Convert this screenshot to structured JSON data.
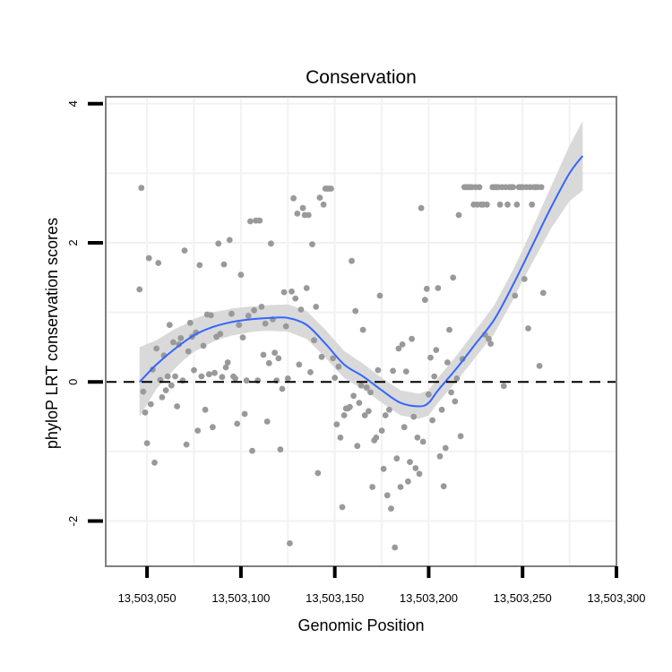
{
  "chart_data": {
    "type": "scatter",
    "title": "Conservation",
    "xlabel": "Genomic Position",
    "ylabel": "phyloP LRT conservation scores",
    "xlim": [
      13503028,
      13503300
    ],
    "ylim": [
      -2.65,
      4.1
    ],
    "x_ticks": [
      13503050,
      13503100,
      13503150,
      13503200,
      13503250,
      13503300
    ],
    "x_tick_labels": [
      "13,503,050",
      "13,503,100",
      "13,503,150",
      "13,503,200",
      "13,503,250",
      "13,503,300"
    ],
    "y_ticks": [
      -2,
      0,
      2,
      4
    ],
    "y_tick_labels": [
      "-2",
      "0",
      "2",
      "4"
    ],
    "reference_line": {
      "y": 0,
      "style": "dashed"
    },
    "grid": true,
    "colors": {
      "points": "#999999",
      "smooth": "#3366ff",
      "ribbon": "#d9d9d9",
      "grid": "#f2f2f2",
      "border": "#7f7f7f"
    },
    "points": [
      [
        13503046,
        1.33
      ],
      [
        13503047,
        2.79
      ],
      [
        13503048,
        -0.14
      ],
      [
        13503049,
        -0.44
      ],
      [
        13503050,
        -0.88
      ],
      [
        13503051,
        1.78
      ],
      [
        13503052,
        -0.32
      ],
      [
        13503053,
        0.18
      ],
      [
        13503054,
        -1.16
      ],
      [
        13503055,
        0.48
      ],
      [
        13503056,
        1.71
      ],
      [
        13503057,
        0.03
      ],
      [
        13503058,
        -0.22
      ],
      [
        13503059,
        0.38
      ],
      [
        13503060,
        -0.12
      ],
      [
        13503061,
        0.08
      ],
      [
        13503062,
        0.82
      ],
      [
        13503063,
        -0.05
      ],
      [
        13503064,
        0.57
      ],
      [
        13503065,
        0.08
      ],
      [
        13503066,
        -0.35
      ],
      [
        13503067,
        0.54
      ],
      [
        13503068,
        0.63
      ],
      [
        13503069,
        0.02
      ],
      [
        13503070,
        1.89
      ],
      [
        13503071,
        -0.9
      ],
      [
        13503072,
        0.44
      ],
      [
        13503073,
        0.85
      ],
      [
        13503074,
        0.65
      ],
      [
        13503075,
        0.17
      ],
      [
        13503076,
        0.71
      ],
      [
        13503077,
        -0.7
      ],
      [
        13503078,
        1.68
      ],
      [
        13503079,
        0.08
      ],
      [
        13503080,
        0.52
      ],
      [
        13503081,
        -0.4
      ],
      [
        13503082,
        0.97
      ],
      [
        13503083,
        0.11
      ],
      [
        13503084,
        0.96
      ],
      [
        13503085,
        -0.65
      ],
      [
        13503086,
        0.13
      ],
      [
        13503087,
        0.65
      ],
      [
        13503088,
        1.99
      ],
      [
        13503089,
        0.69
      ],
      [
        13503090,
        0.07
      ],
      [
        13503091,
        1.69
      ],
      [
        13503092,
        0.21
      ],
      [
        13503093,
        0.28
      ],
      [
        13503094,
        2.04
      ],
      [
        13503095,
        0.98
      ],
      [
        13503096,
        0.08
      ],
      [
        13503097,
        0.05
      ],
      [
        13503098,
        -0.6
      ],
      [
        13503099,
        0.82
      ],
      [
        13503100,
        1.54
      ],
      [
        13503101,
        0.64
      ],
      [
        13503102,
        -0.46
      ],
      [
        13503103,
        0.02
      ],
      [
        13503104,
        0.95
      ],
      [
        13503105,
        2.31
      ],
      [
        13503106,
        -0.99
      ],
      [
        13503107,
        1.03
      ],
      [
        13503108,
        2.32
      ],
      [
        13503109,
        0.02
      ],
      [
        13503110,
        2.32
      ],
      [
        13503111,
        1.08
      ],
      [
        13503112,
        0.39
      ],
      [
        13503113,
        0.84
      ],
      [
        13503114,
        -0.57
      ],
      [
        13503115,
        0.27
      ],
      [
        13503116,
        1.99
      ],
      [
        13503117,
        0.9
      ],
      [
        13503118,
        0.42
      ],
      [
        13503119,
        0.02
      ],
      [
        13503120,
        0.34
      ],
      [
        13503121,
        -0.97
      ],
      [
        13503122,
        -0.1
      ],
      [
        13503123,
        1.29
      ],
      [
        13503124,
        0.8
      ],
      [
        13503125,
        0.05
      ],
      [
        13503126,
        -2.32
      ],
      [
        13503127,
        1.3
      ],
      [
        13503128,
        2.64
      ],
      [
        13503129,
        1.2
      ],
      [
        13503130,
        2.42
      ],
      [
        13503131,
        0.25
      ],
      [
        13503132,
        1.04
      ],
      [
        13503133,
        2.5
      ],
      [
        13503134,
        2.4
      ],
      [
        13503135,
        1.35
      ],
      [
        13503136,
        2.4
      ],
      [
        13503137,
        0.14
      ],
      [
        13503138,
        1.98
      ],
      [
        13503139,
        0.6
      ],
      [
        13503140,
        1.08
      ],
      [
        13503141,
        -1.31
      ],
      [
        13503142,
        2.65
      ],
      [
        13503143,
        0.36
      ],
      [
        13503144,
        2.55
      ],
      [
        13503145,
        2.78
      ],
      [
        13503146,
        2.78
      ],
      [
        13503147,
        2.78
      ],
      [
        13503148,
        2.78
      ],
      [
        13503149,
        0.34
      ],
      [
        13503150,
        0.06
      ],
      [
        13503151,
        -0.61
      ],
      [
        13503152,
        0.22
      ],
      [
        13503153,
        -0.8
      ],
      [
        13503154,
        -1.8
      ],
      [
        13503155,
        -0.48
      ],
      [
        13503156,
        -0.38
      ],
      [
        13503157,
        -0.38
      ],
      [
        13503158,
        -0.36
      ],
      [
        13503159,
        1.74
      ],
      [
        13503160,
        -0.2
      ],
      [
        13503161,
        1.02
      ],
      [
        13503162,
        -0.92
      ],
      [
        13503163,
        -0.3
      ],
      [
        13503164,
        -0.05
      ],
      [
        13503165,
        0.75
      ],
      [
        13503166,
        -0.48
      ],
      [
        13503167,
        -0.08
      ],
      [
        13503168,
        -0.42
      ],
      [
        13503169,
        -0.15
      ],
      [
        13503170,
        -1.51
      ],
      [
        13503171,
        -0.84
      ],
      [
        13503172,
        -0.8
      ],
      [
        13503173,
        0.17
      ],
      [
        13503174,
        1.24
      ],
      [
        13503175,
        -0.7
      ],
      [
        13503176,
        -1.25
      ],
      [
        13503177,
        -0.48
      ],
      [
        13503178,
        -1.63
      ],
      [
        13503179,
        -0.4
      ],
      [
        13503180,
        -1.82
      ],
      [
        13503181,
        0.16
      ],
      [
        13503182,
        -2.38
      ],
      [
        13503183,
        -1.1
      ],
      [
        13503184,
        0.48
      ],
      [
        13503185,
        -1.51
      ],
      [
        13503186,
        0.54
      ],
      [
        13503187,
        -0.65
      ],
      [
        13503188,
        0.15
      ],
      [
        13503189,
        -1.43
      ],
      [
        13503190,
        -1.15
      ],
      [
        13503191,
        0.62
      ],
      [
        13503192,
        -0.5
      ],
      [
        13503193,
        -1.24
      ],
      [
        13503194,
        -0.8
      ],
      [
        13503195,
        -1.32
      ],
      [
        13503196,
        2.5
      ],
      [
        13503197,
        -0.86
      ],
      [
        13503198,
        1.18
      ],
      [
        13503199,
        1.34
      ],
      [
        13503200,
        -0.18
      ],
      [
        13503201,
        0.35
      ],
      [
        13503202,
        -0.55
      ],
      [
        13503203,
        0.08
      ],
      [
        13503204,
        0.46
      ],
      [
        13503205,
        1.35
      ],
      [
        13503206,
        -1.07
      ],
      [
        13503207,
        -0.4
      ],
      [
        13503208,
        -1.5
      ],
      [
        13503209,
        -0.95
      ],
      [
        13503210,
        0.28
      ],
      [
        13503211,
        0.75
      ],
      [
        13503212,
        -0.15
      ],
      [
        13503213,
        1.5
      ],
      [
        13503214,
        -0.28
      ],
      [
        13503215,
        0.05
      ],
      [
        13503216,
        2.4
      ],
      [
        13503217,
        -0.78
      ],
      [
        13503218,
        0.33
      ],
      [
        13503219,
        2.8
      ],
      [
        13503220,
        2.8
      ],
      [
        13503221,
        2.8
      ],
      [
        13503222,
        2.8
      ],
      [
        13503223,
        2.8
      ],
      [
        13503224,
        2.55
      ],
      [
        13503225,
        2.8
      ],
      [
        13503226,
        2.55
      ],
      [
        13503227,
        2.8
      ],
      [
        13503228,
        2.55
      ],
      [
        13503229,
        2.55
      ],
      [
        13503230,
        0.68
      ],
      [
        13503231,
        2.55
      ],
      [
        13503232,
        0.62
      ],
      [
        13503233,
        0.55
      ],
      [
        13503234,
        2.8
      ],
      [
        13503235,
        2.8
      ],
      [
        13503236,
        2.8
      ],
      [
        13503237,
        2.8
      ],
      [
        13503238,
        2.55
      ],
      [
        13503239,
        2.8
      ],
      [
        13503240,
        -0.06
      ],
      [
        13503241,
        2.8
      ],
      [
        13503242,
        2.55
      ],
      [
        13503243,
        2.8
      ],
      [
        13503244,
        2.8
      ],
      [
        13503245,
        2.8
      ],
      [
        13503246,
        1.24
      ],
      [
        13503247,
        2.55
      ],
      [
        13503248,
        2.8
      ],
      [
        13503249,
        2.8
      ],
      [
        13503250,
        2.8
      ],
      [
        13503251,
        1.48
      ],
      [
        13503252,
        2.8
      ],
      [
        13503253,
        0.77
      ],
      [
        13503254,
        2.8
      ],
      [
        13503255,
        2.55
      ],
      [
        13503256,
        2.8
      ],
      [
        13503257,
        2.8
      ],
      [
        13503258,
        2.8
      ],
      [
        13503259,
        0.23
      ],
      [
        13503260,
        2.8
      ],
      [
        13503261,
        1.28
      ]
    ],
    "smooth": [
      [
        13503046,
        0.0
      ],
      [
        13503055,
        0.25
      ],
      [
        13503065,
        0.48
      ],
      [
        13503075,
        0.67
      ],
      [
        13503085,
        0.79
      ],
      [
        13503095,
        0.86
      ],
      [
        13503105,
        0.9
      ],
      [
        13503115,
        0.92
      ],
      [
        13503125,
        0.92
      ],
      [
        13503135,
        0.82
      ],
      [
        13503145,
        0.55
      ],
      [
        13503155,
        0.25
      ],
      [
        13503165,
        0.08
      ],
      [
        13503175,
        -0.12
      ],
      [
        13503185,
        -0.3
      ],
      [
        13503195,
        -0.35
      ],
      [
        13503200,
        -0.3
      ],
      [
        13503205,
        -0.12
      ],
      [
        13503215,
        0.2
      ],
      [
        13503225,
        0.55
      ],
      [
        13503235,
        0.9
      ],
      [
        13503245,
        1.4
      ],
      [
        13503255,
        1.95
      ],
      [
        13503265,
        2.5
      ],
      [
        13503275,
        3.0
      ],
      [
        13503282,
        3.25
      ]
    ],
    "ribbon_halfwidth": [
      [
        13503046,
        0.5
      ],
      [
        13503055,
        0.35
      ],
      [
        13503070,
        0.25
      ],
      [
        13503090,
        0.2
      ],
      [
        13503110,
        0.18
      ],
      [
        13503130,
        0.2
      ],
      [
        13503150,
        0.2
      ],
      [
        13503170,
        0.18
      ],
      [
        13503190,
        0.18
      ],
      [
        13503210,
        0.18
      ],
      [
        13503230,
        0.2
      ],
      [
        13503250,
        0.22
      ],
      [
        13503265,
        0.3
      ],
      [
        13503275,
        0.4
      ],
      [
        13503282,
        0.5
      ]
    ]
  }
}
